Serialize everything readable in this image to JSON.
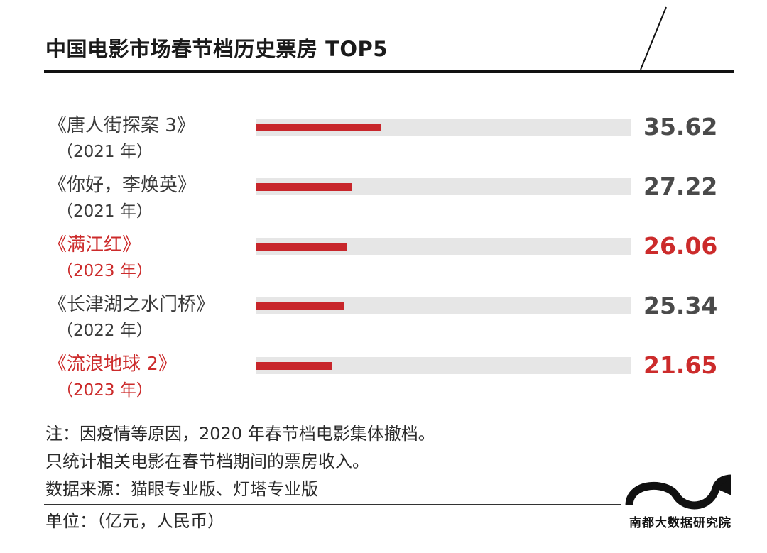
{
  "title": "中国电影市场春节档历史票房 TOP5",
  "chart_data": {
    "type": "bar",
    "orientation": "horizontal",
    "title": "中国电影市场春节档历史票房 TOP5",
    "categories": [
      "《唐人街探案 3》",
      "《你好，李焕英》",
      "《满江红》",
      "《长津湖之水门桥》",
      "《流浪地球 2》"
    ],
    "years": [
      "（2021 年）",
      "（2021 年）",
      "（2023 年）",
      "（2022 年）",
      "（2023 年）"
    ],
    "values": [
      35.62,
      27.22,
      26.06,
      25.34,
      21.65
    ],
    "value_labels": [
      "35.62",
      "27.22",
      "26.06",
      "25.34",
      "21.65"
    ],
    "highlighted": [
      false,
      false,
      true,
      false,
      true
    ],
    "xlim": [
      0,
      107
    ],
    "unit": "单位：（亿元，人民币）",
    "colors": {
      "bar": "#c8262b",
      "track": "#e6e6e6",
      "highlight_text": "#cc2b2b",
      "text": "#3a3a3a"
    }
  },
  "notes": [
    "注：因疫情等原因，2020 年春节档电影集体撤档。",
    "只统计相关电影在春节档期间的票房收入。",
    "数据来源：猫眼专业版、灯塔专业版"
  ],
  "unit_label": "单位：（亿元，人民币）",
  "logo": {
    "text": "南都大数据研究院"
  }
}
